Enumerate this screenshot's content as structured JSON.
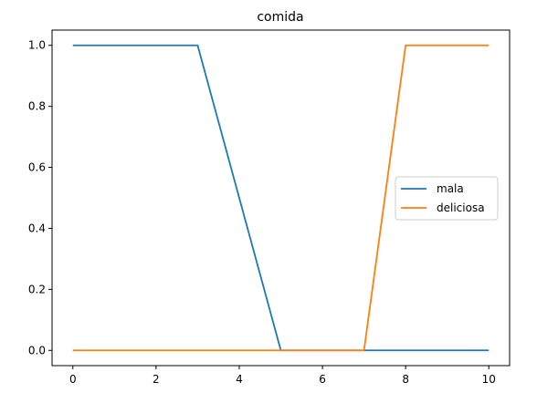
{
  "chart_data": {
    "type": "line",
    "title": "comida",
    "xlabel": "",
    "ylabel": "",
    "xlim": [
      -0.5,
      10.5
    ],
    "ylim": [
      -0.05,
      1.05
    ],
    "xticks": [
      0,
      2,
      4,
      6,
      8,
      10
    ],
    "xtick_labels": [
      "0",
      "2",
      "4",
      "6",
      "8",
      "10"
    ],
    "yticks": [
      0.0,
      0.2,
      0.4,
      0.6,
      0.8,
      1.0
    ],
    "ytick_labels": [
      "0.0",
      "0.2",
      "0.4",
      "0.6",
      "0.8",
      "1.0"
    ],
    "grid": false,
    "legend_position": "center-right",
    "series": [
      {
        "name": "mala",
        "color": "#1f77b4",
        "x": [
          0,
          1,
          2,
          3,
          4,
          5,
          6,
          7,
          8,
          9,
          10
        ],
        "y": [
          1,
          1,
          1,
          1,
          0.5,
          0,
          0,
          0,
          0,
          0,
          0
        ]
      },
      {
        "name": "deliciosa",
        "color": "#ff7f0e",
        "x": [
          0,
          1,
          2,
          3,
          4,
          5,
          6,
          7,
          8,
          9,
          10
        ],
        "y": [
          0,
          0,
          0,
          0,
          0,
          0,
          0,
          0,
          1,
          1,
          1
        ]
      }
    ]
  }
}
